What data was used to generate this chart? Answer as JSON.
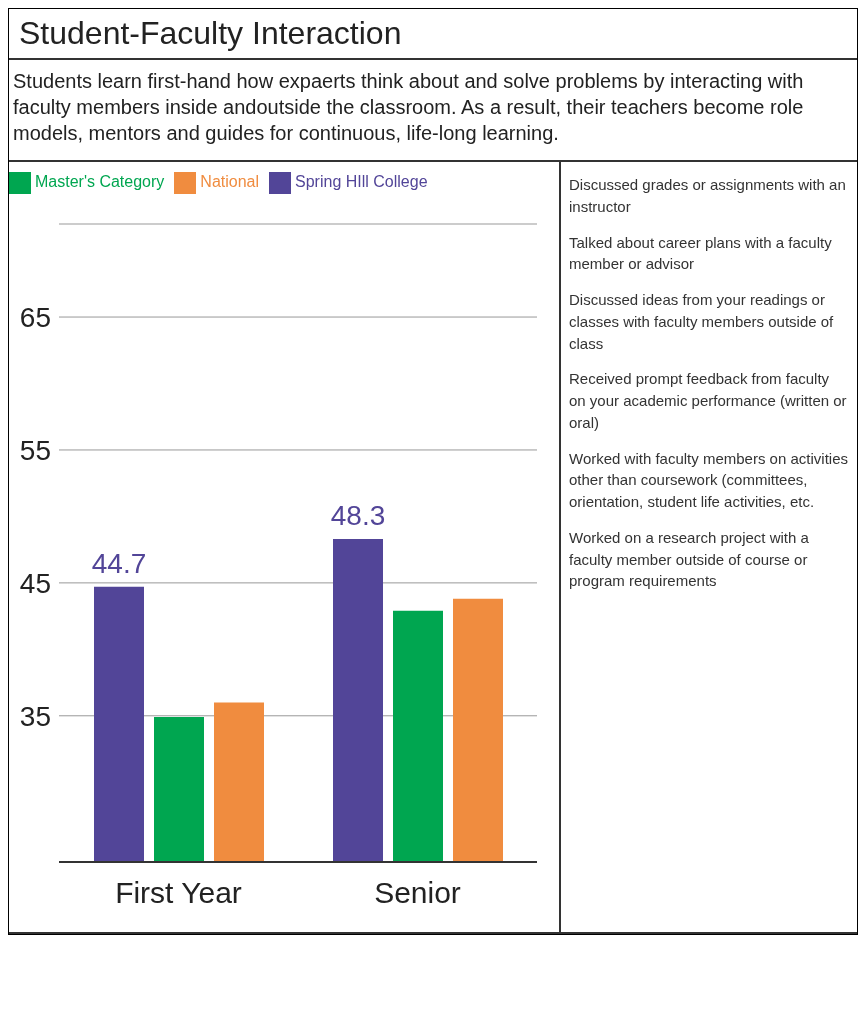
{
  "chart_data": {
    "type": "bar",
    "title": "Student-Faculty Interaction",
    "subtitle": "Students learn first-hand how expaerts think about and solve problems by interacting with faculty members inside andoutside the classroom. As a result, their teachers become role models, mentors and guides for continuous, life-long learning.",
    "categories": [
      "First Year",
      "Senior"
    ],
    "series": [
      {
        "name": "Spring HIll College",
        "color": "#524598",
        "values": [
          44.7,
          48.3
        ],
        "value_labels": [
          "44.7",
          "48.3"
        ]
      },
      {
        "name": "Master's Category",
        "color": "#00a650",
        "values": [
          34.9,
          42.9
        ]
      },
      {
        "name": "National",
        "color": "#f08c3f",
        "values": [
          36.0,
          43.8
        ]
      }
    ],
    "ylim": [
      24,
      72
    ],
    "yticks": [
      35,
      45,
      55,
      65
    ],
    "grid": "y",
    "legend": "top left",
    "annotations": [
      "Discussed grades or assignments with an instructor",
      "Talked about career plans with a faculty member or advisor",
      "Discussed ideas from your readings or classes with faculty members outside of class",
      "Received prompt feedback from faculty on your academic performance (written or oral)",
      "Worked with faculty members on activities other than coursework (committees, orientation, student life activities, etc.",
      "Worked on a research project with a faculty member outside of course or program requirements"
    ]
  }
}
